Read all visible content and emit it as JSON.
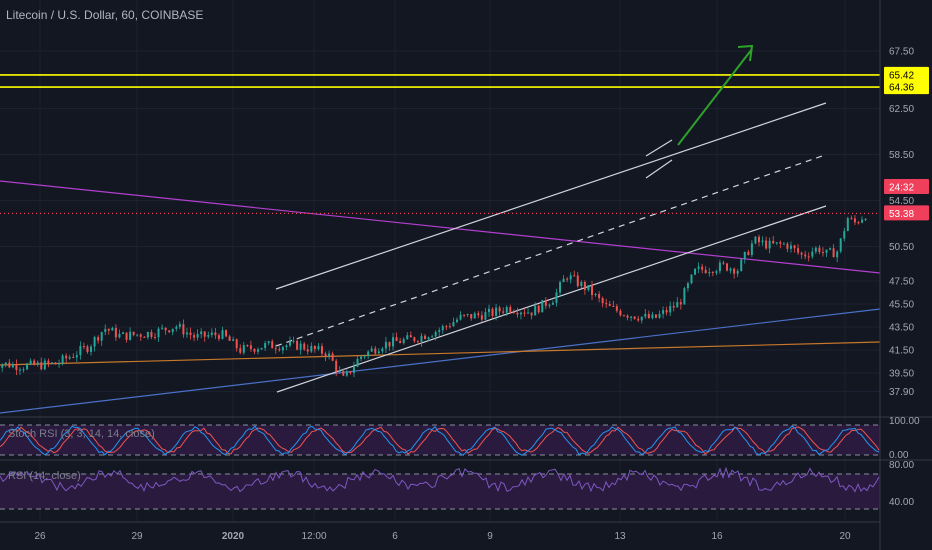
{
  "header": {
    "title": "Litecoin / U.S. Dollar, 60, COINBASE"
  },
  "indicators": {
    "stoch_label": "Stoch RSI (3, 3, 14, 14, close)",
    "rsi_label": "RSI (14, close)",
    "stoch_ticks": [
      "100.00",
      "0.00"
    ],
    "rsi_ticks": [
      "80.00",
      "40.00"
    ]
  },
  "price_tags": [
    {
      "value": 65.42,
      "label": "65.42",
      "bg": "#ffff00",
      "fg": "#000000"
    },
    {
      "value": 64.36,
      "label": "64.36",
      "bg": "#ffff00",
      "fg": "#000000"
    },
    {
      "value": 53.38,
      "label": "53.38",
      "bg": "#ef3f5b",
      "fg": "#ffffff"
    },
    {
      "label": "24:32",
      "bg": "#ef3f5b",
      "fg": "#ffffff"
    }
  ],
  "colors": {
    "background": "#131722",
    "up": "#26a69a",
    "down": "#ef5350",
    "level_line": "#ffff00",
    "price_line": "#ef3f5b",
    "channel": "#d1d4dc",
    "magenta_line": "#b23fcf",
    "blue_line": "#4a70c8",
    "orange_line": "#c8782a",
    "arrow": "#2ea12b",
    "stoch_k": "#2196f3",
    "stoch_d": "#ef5350",
    "rsi": "#7e57c2"
  },
  "chart_data": {
    "type": "candlestick",
    "symbol": "Litecoin / U.S. Dollar",
    "interval": "60",
    "exchange": "COINBASE",
    "y_ticks": [
      67.5,
      62.5,
      58.5,
      54.5,
      50.5,
      47.5,
      45.5,
      43.5,
      41.5,
      39.5,
      37.9
    ],
    "x_ticks": [
      "26",
      "29",
      "2020",
      "12:00",
      "6",
      "9",
      "13",
      "16",
      "20"
    ],
    "last_price": 53.38,
    "countdown": "24:32",
    "horizontal_levels": [
      65.42,
      64.36
    ],
    "price_path": [
      {
        "day": 24.5,
        "price": 40.4
      },
      {
        "day": 25.5,
        "price": 40.1
      },
      {
        "day": 26.5,
        "price": 40.3
      },
      {
        "day": 27.5,
        "price": 41.8
      },
      {
        "day": 28.0,
        "price": 43.4
      },
      {
        "day": 28.5,
        "price": 42.7
      },
      {
        "day": 29.5,
        "price": 43.0
      },
      {
        "day": 30.2,
        "price": 43.6
      },
      {
        "day": 30.8,
        "price": 42.6
      },
      {
        "day": 31.6,
        "price": 42.9
      },
      {
        "day": 32.2,
        "price": 41.5
      },
      {
        "day": 33.0,
        "price": 41.9
      },
      {
        "day": 34.0,
        "price": 41.9
      },
      {
        "day": 34.9,
        "price": 41.2
      },
      {
        "day": 35.4,
        "price": 38.9
      },
      {
        "day": 35.9,
        "price": 40.9
      },
      {
        "day": 36.6,
        "price": 42.0
      },
      {
        "day": 37.6,
        "price": 42.5
      },
      {
        "day": 38.4,
        "price": 43.3
      },
      {
        "day": 39.0,
        "price": 44.3
      },
      {
        "day": 40.0,
        "price": 44.7
      },
      {
        "day": 40.5,
        "price": 45.2
      },
      {
        "day": 41.2,
        "price": 44.8
      },
      {
        "day": 41.9,
        "price": 46.0
      },
      {
        "day": 42.3,
        "price": 48.0
      },
      {
        "day": 43.0,
        "price": 46.7
      },
      {
        "day": 43.5,
        "price": 45.3
      },
      {
        "day": 44.2,
        "price": 44.6
      },
      {
        "day": 45.0,
        "price": 44.2
      },
      {
        "day": 45.8,
        "price": 45.6
      },
      {
        "day": 46.3,
        "price": 48.4
      },
      {
        "day": 46.7,
        "price": 48.6
      },
      {
        "day": 47.2,
        "price": 48.8
      },
      {
        "day": 47.6,
        "price": 48.5
      },
      {
        "day": 48.1,
        "price": 51.0
      },
      {
        "day": 48.6,
        "price": 50.6
      },
      {
        "day": 49.1,
        "price": 50.7
      },
      {
        "day": 49.6,
        "price": 49.7
      },
      {
        "day": 50.1,
        "price": 50.4
      },
      {
        "day": 50.3,
        "price": 49.8
      },
      {
        "day": 50.7,
        "price": 50.1
      },
      {
        "day": 51.0,
        "price": 53.0
      },
      {
        "day": 51.2,
        "price": 52.5
      },
      {
        "day": 51.6,
        "price": 53.4
      }
    ],
    "stoch_rsi": {
      "range": [
        0,
        100
      ],
      "bands": [
        80,
        20
      ]
    },
    "rsi": {
      "range": [
        30,
        80
      ],
      "bands": [
        70,
        30
      ]
    }
  }
}
